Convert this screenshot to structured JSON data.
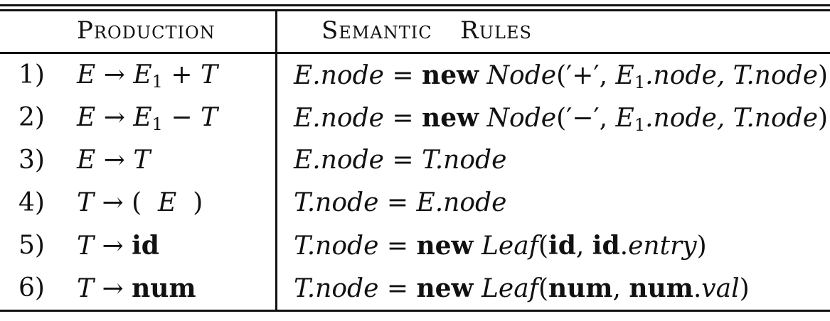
{
  "header": {
    "production": "Production",
    "semantic_rules": "Semantic  Rules"
  },
  "rows": [
    {
      "number": "1)",
      "production": {
        "lhs": "E",
        "arrow": "→",
        "first": "E",
        "sub": "1",
        "op": "+",
        "last": "T"
      },
      "rule": {
        "lhs": "E.node",
        "eq": "=",
        "kw": "new",
        "ctor": "Node",
        "args": "(′+′, ",
        "a1": "E",
        "a1sub": "1",
        "a1rest": ".node, ",
        "a2": "T.node",
        "close": ")"
      }
    },
    {
      "number": "2)",
      "production": {
        "lhs": "E",
        "arrow": "→",
        "first": "E",
        "sub": "1",
        "op": "−",
        "last": "T"
      },
      "rule": {
        "lhs": "E.node",
        "eq": "=",
        "kw": "new",
        "ctor": "Node",
        "args": "(′−′, ",
        "a1": "E",
        "a1sub": "1",
        "a1rest": ".node, ",
        "a2": "T.node",
        "close": ")"
      }
    },
    {
      "number": "3)",
      "production": {
        "lhs": "E",
        "arrow": "→",
        "rhs": "T"
      },
      "rule": {
        "lhs": "E.node",
        "eq": "=",
        "rhs": "T.node"
      }
    },
    {
      "number": "4)",
      "production": {
        "lhs": "T",
        "arrow": "→",
        "open": "(",
        "mid": "E",
        "close": ")"
      },
      "rule": {
        "lhs": "T.node",
        "eq": "=",
        "rhs": "E.node"
      }
    },
    {
      "number": "5)",
      "production": {
        "lhs": "T",
        "arrow": "→",
        "terminal": "id"
      },
      "rule": {
        "lhs": "T.node",
        "eq": "=",
        "kw": "new",
        "ctor": "Leaf",
        "open": "(",
        "t1": "id",
        "comma": ", ",
        "t2": "id",
        "dot": ".",
        "attr": "entry",
        "close": ")"
      }
    },
    {
      "number": "6)",
      "production": {
        "lhs": "T",
        "arrow": "→",
        "terminal": "num"
      },
      "rule": {
        "lhs": "T.node",
        "eq": "=",
        "kw": "new",
        "ctor": "Leaf",
        "open": "(",
        "t1": "num",
        "comma": ", ",
        "t2": "num",
        "dot": ".",
        "attr": "val",
        "close": ")"
      }
    }
  ]
}
